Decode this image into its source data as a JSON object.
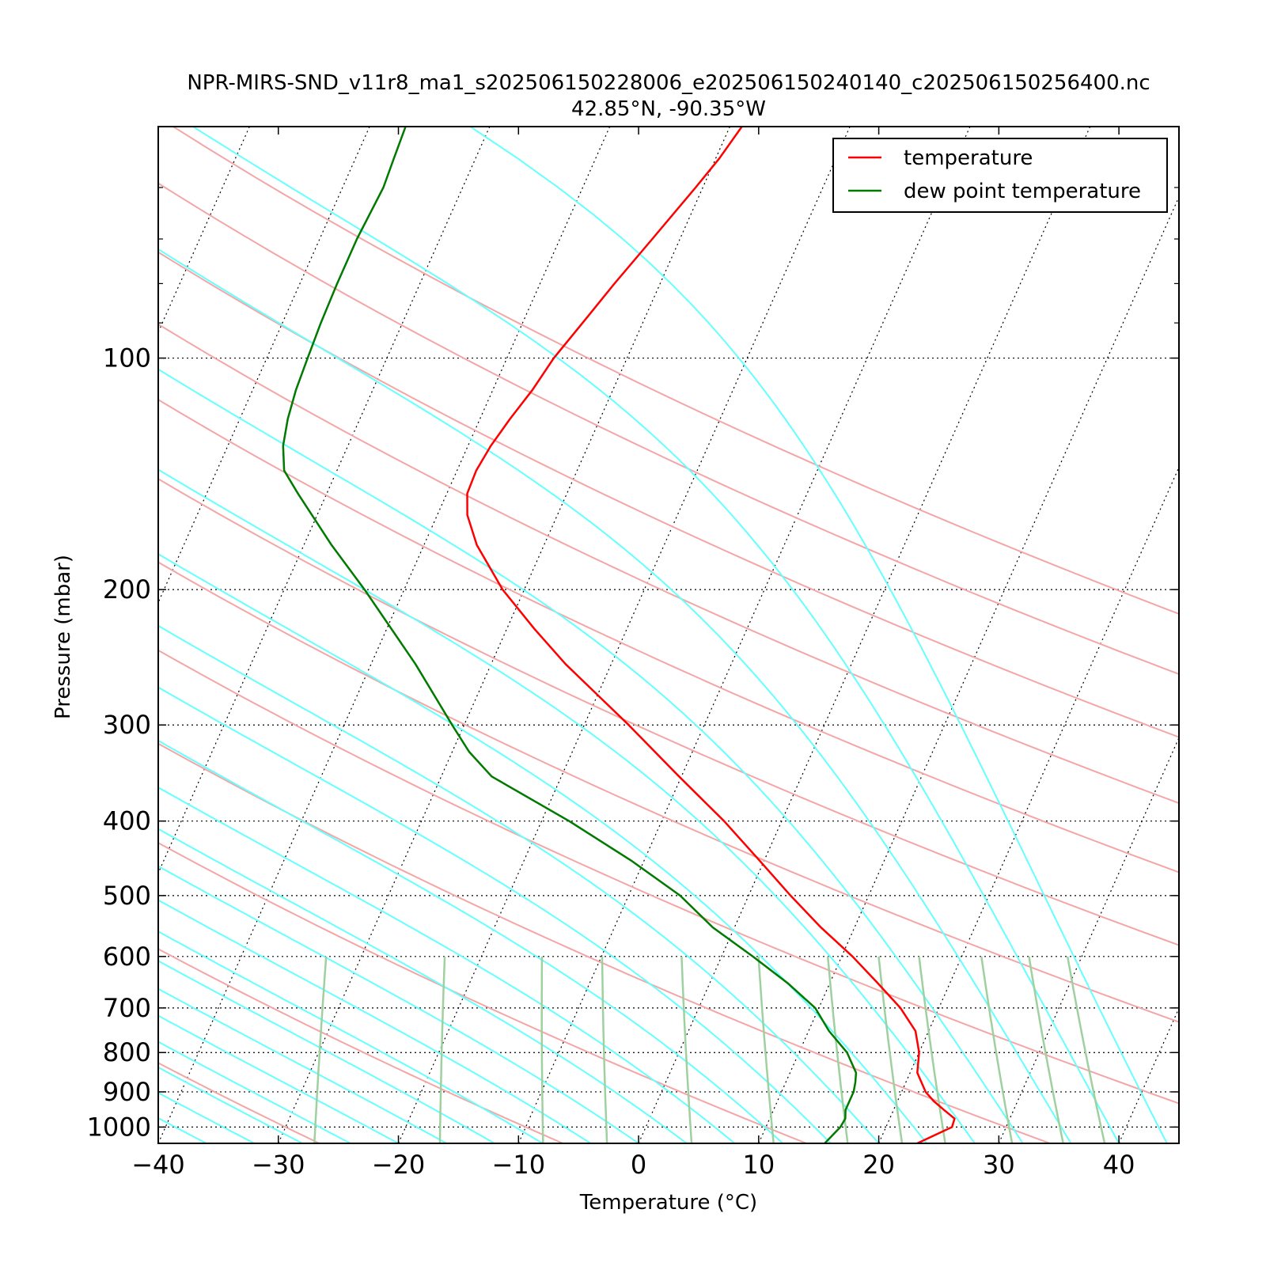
{
  "chart_data": {
    "type": "line",
    "title": "NPR-MIRS-SND_v11r8_ma1_s202506150228006_e202506150240140_c202506150256400.nc",
    "subtitle": "42.85°N, -90.35°W",
    "xlabel": "Temperature (°C)",
    "ylabel": "Pressure (mbar)",
    "xlim": [
      -40,
      45
    ],
    "ylim": [
      1050,
      50
    ],
    "y_scale": "log",
    "skew": true,
    "grid": true,
    "legend_position": "top-right",
    "x_ticks": [
      -40,
      -30,
      -20,
      -10,
      0,
      10,
      20,
      30,
      40
    ],
    "x_tick_labels": [
      "−40",
      "−30",
      "−20",
      "−10",
      "0",
      "10",
      "20",
      "30",
      "40"
    ],
    "y_ticks": [
      100,
      200,
      300,
      400,
      500,
      600,
      700,
      800,
      900,
      1000
    ],
    "y_tick_labels": [
      "100",
      "200",
      "300",
      "400",
      "500",
      "600",
      "700",
      "800",
      "900",
      "1000"
    ],
    "colors": {
      "temperature": "#ff0000",
      "dewpoint": "#007a00",
      "dry_adiabats": "#f4a6a6",
      "moist_adiabats": "#66ffff",
      "mixing_ratio": "#9fd09f",
      "isotherms": "#000000"
    },
    "series": [
      {
        "name": "temperature",
        "pressure": [
          1050,
          1000,
          975,
          950,
          925,
          900,
          850,
          800,
          750,
          700,
          650,
          600,
          550,
          500,
          450,
          400,
          350,
          300,
          250,
          225,
          200,
          175,
          160,
          150,
          140,
          130,
          120,
          110,
          100,
          90,
          80,
          70,
          60,
          55,
          50
        ],
        "values": [
          23.2,
          25.5,
          25.4,
          24.2,
          23.0,
          22.0,
          20.6,
          20.0,
          18.9,
          16.8,
          14.0,
          10.9,
          7.2,
          3.5,
          -0.4,
          -4.8,
          -10.2,
          -16.3,
          -23.8,
          -27.7,
          -31.8,
          -35.6,
          -37.5,
          -38.3,
          -38.4,
          -38.1,
          -37.5,
          -36.7,
          -36.1,
          -35.0,
          -33.8,
          -32.3,
          -30.6,
          -29.7,
          -29.0
        ]
      },
      {
        "name": "dew point temperature",
        "pressure": [
          1050,
          1000,
          975,
          950,
          925,
          900,
          875,
          850,
          800,
          750,
          700,
          650,
          600,
          550,
          500,
          450,
          400,
          350,
          325,
          300,
          250,
          200,
          175,
          150,
          140,
          130,
          120,
          110,
          100,
          90,
          80,
          70,
          60,
          55,
          50
        ],
        "values": [
          15.5,
          16.2,
          16.3,
          16.0,
          16.0,
          16.0,
          15.8,
          15.5,
          14.0,
          11.7,
          9.7,
          6.5,
          2.6,
          -1.8,
          -5.7,
          -11.1,
          -17.7,
          -25.8,
          -28.6,
          -31.0,
          -36.3,
          -43.3,
          -47.7,
          -52.4,
          -54.4,
          -55.4,
          -56.0,
          -56.4,
          -56.6,
          -56.8,
          -56.9,
          -56.9,
          -56.6,
          -56.8,
          -57.0
        ]
      }
    ]
  }
}
